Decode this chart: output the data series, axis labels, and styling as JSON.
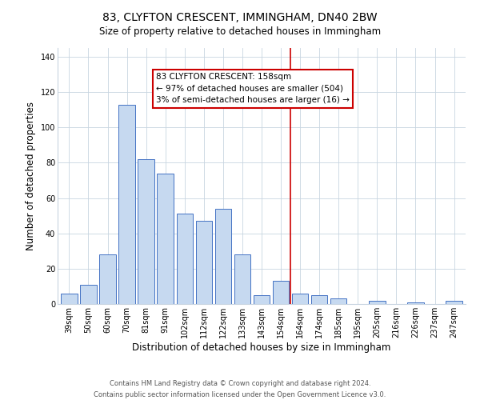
{
  "title": "83, CLYFTON CRESCENT, IMMINGHAM, DN40 2BW",
  "subtitle": "Size of property relative to detached houses in Immingham",
  "xlabel": "Distribution of detached houses by size in Immingham",
  "ylabel": "Number of detached properties",
  "bar_labels": [
    "39sqm",
    "50sqm",
    "60sqm",
    "70sqm",
    "81sqm",
    "91sqm",
    "102sqm",
    "112sqm",
    "122sqm",
    "133sqm",
    "143sqm",
    "154sqm",
    "164sqm",
    "174sqm",
    "185sqm",
    "195sqm",
    "205sqm",
    "216sqm",
    "226sqm",
    "237sqm",
    "247sqm"
  ],
  "bar_values": [
    6,
    11,
    28,
    113,
    82,
    74,
    51,
    47,
    54,
    28,
    5,
    13,
    6,
    5,
    3,
    0,
    2,
    0,
    1,
    0,
    2
  ],
  "bar_color": "#c6d9f0",
  "bar_edge_color": "#4472c4",
  "vline_x_index": 11,
  "vline_color": "#cc0000",
  "annotation_title": "83 CLYFTON CRESCENT: 158sqm",
  "annotation_line1": "← 97% of detached houses are smaller (504)",
  "annotation_line2": "3% of semi-detached houses are larger (16) →",
  "annotation_box_color": "#ffffff",
  "annotation_box_edge": "#cc0000",
  "ylim": [
    0,
    145
  ],
  "yticks": [
    0,
    20,
    40,
    60,
    80,
    100,
    120,
    140
  ],
  "footer1": "Contains HM Land Registry data © Crown copyright and database right 2024.",
  "footer2": "Contains public sector information licensed under the Open Government Licence v3.0.",
  "bg_color": "#ffffff",
  "grid_color": "#c8d4e0",
  "title_fontsize": 10,
  "subtitle_fontsize": 8.5,
  "axis_label_fontsize": 8.5,
  "tick_fontsize": 7,
  "footer_fontsize": 6,
  "annotation_fontsize": 7.5
}
